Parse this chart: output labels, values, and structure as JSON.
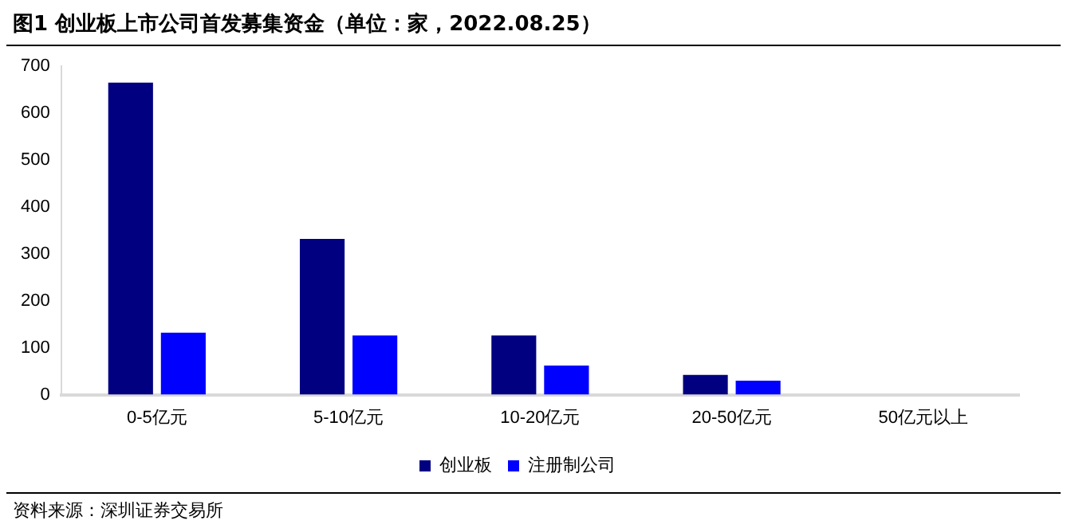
{
  "chart_data": {
    "type": "bar",
    "title": "图1  创业板上市公司首发募集资金（单位：家，2022.08.25）",
    "categories": [
      "0-5亿元",
      "5-10亿元",
      "10-20亿元",
      "20-50亿元",
      "50亿元以上"
    ],
    "series": [
      {
        "name": "创业板",
        "color": "#000080",
        "values": [
          665,
          332,
          126,
          42,
          0
        ]
      },
      {
        "name": "注册制公司",
        "color": "#0000ff",
        "values": [
          132,
          126,
          62,
          30,
          0
        ]
      }
    ],
    "ylim": [
      0,
      700
    ],
    "yticks": [
      0,
      100,
      200,
      300,
      400,
      500,
      600,
      700
    ],
    "grid": false,
    "legend": "bottom",
    "annotations": [
      "资料来源：深圳证券交易所"
    ]
  }
}
